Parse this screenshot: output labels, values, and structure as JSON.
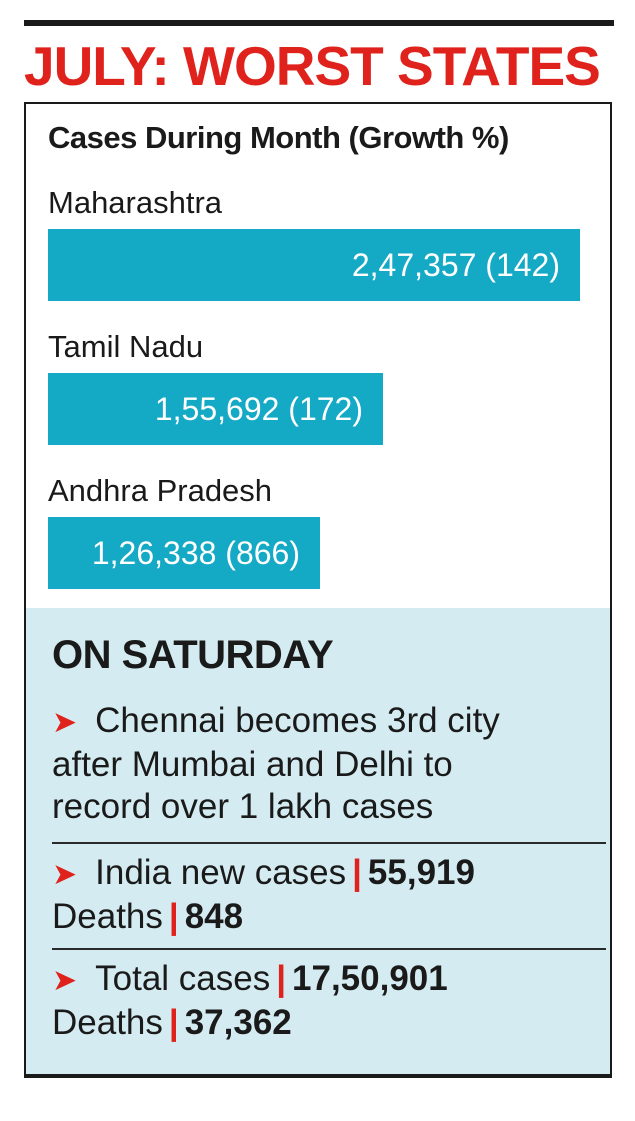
{
  "headline": "JULY: WORST STATES",
  "chart_data": {
    "type": "bar",
    "orientation": "horizontal",
    "title": "Cases During Month (Growth %)",
    "categories": [
      "Maharashtra",
      "Tamil Nadu",
      "Andhra Pradesh"
    ],
    "values": [
      247357,
      155692,
      126338
    ],
    "growth_pct": [
      142,
      172,
      866
    ],
    "value_labels": [
      "2,47,357 (142)",
      "1,55,692 (172)",
      "1,26,338 (866)"
    ],
    "xlim": [
      0,
      247357
    ],
    "bar_color": "#14a9c4"
  },
  "saturday": {
    "title": "ON SATURDAY",
    "item1": {
      "lines": [
        "Chennai becomes 3rd city",
        "after Mumbai and Delhi to",
        "record over 1 lakh cases"
      ]
    },
    "item2": {
      "new_cases_label": "India new cases",
      "new_cases_value": "55,919",
      "deaths_label": "Deaths",
      "deaths_value": "848"
    },
    "item3": {
      "total_label": "Total cases",
      "total_value": "17,50,901",
      "deaths_label": "Deaths",
      "deaths_value": "37,362"
    },
    "separator": "|",
    "arrow_icon": "right-arrowhead-icon",
    "accent_color": "#e0221c"
  }
}
